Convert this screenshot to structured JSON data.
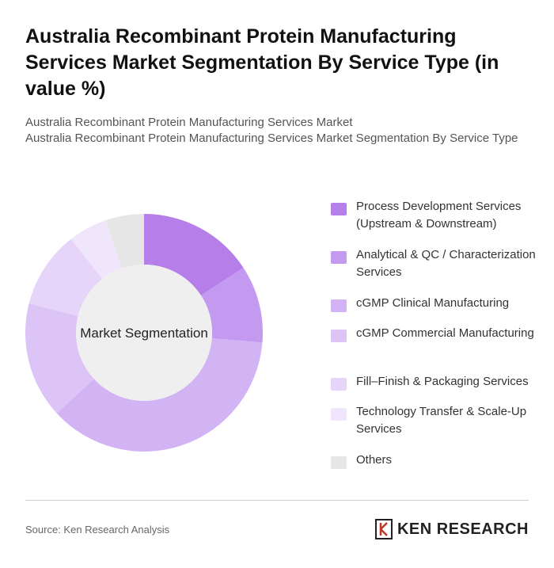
{
  "title": "Australia Recombinant Protein Manufacturing Services Market Segmentation By Service Type (in value %)",
  "subtitle_line1": "Australia Recombinant Protein Manufacturing Services Market",
  "subtitle_line2": "Australia Recombinant Protein Manufacturing Services Market Segmentation By Service Type",
  "footer": {
    "source": "Source: Ken Research Analysis",
    "brand": "KEN RESEARCH"
  },
  "chart_data": {
    "type": "pie",
    "variant": "donut",
    "center_label": "Market Segmentation",
    "legend_position": "right",
    "categories": [
      "Process Development Services (Upstream & Downstream)",
      "Analytical & QC / Characterization Services",
      "cGMP Clinical Manufacturing",
      "cGMP Commercial Manufacturing",
      "Fill–Finish & Packaging Services",
      "Technology Transfer & Scale-Up Services",
      "Others"
    ],
    "values": [
      15,
      10,
      35,
      15,
      10,
      5,
      5
    ],
    "colors": [
      "#b57ee8",
      "#c49af0",
      "#d2b4f5",
      "#dcc4f7",
      "#e6d4f9",
      "#f0e6fc",
      "#e6e6e6"
    ]
  }
}
